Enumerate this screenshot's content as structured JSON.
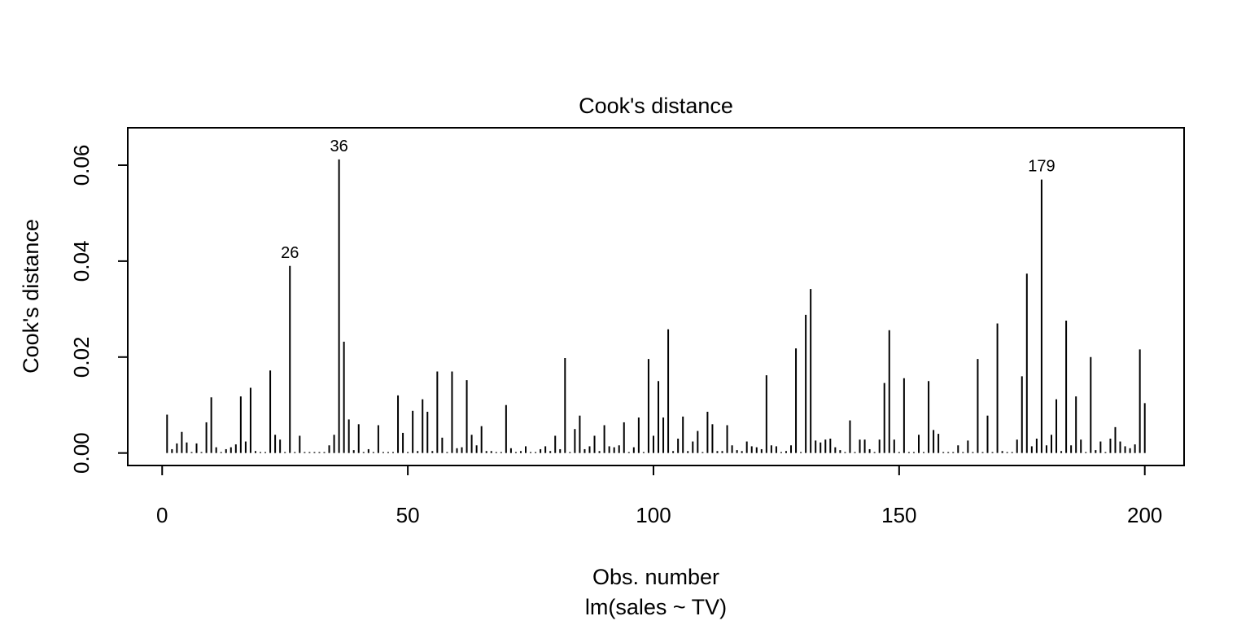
{
  "chart_data": {
    "type": "bar",
    "title": "Cook's distance",
    "xlabel": "Obs. number",
    "sublabel": "lm(sales ~ TV)",
    "ylabel": "Cook's distance",
    "xlim": [
      -7,
      208
    ],
    "ylim": [
      -0.0026,
      0.0678
    ],
    "x_ticks": [
      0,
      50,
      100,
      150,
      200
    ],
    "y_ticks": [
      0.0,
      0.02,
      0.04,
      0.06
    ],
    "y_tick_labels": [
      "0.00",
      "0.02",
      "0.04",
      "0.06"
    ],
    "grid": false,
    "values": [
      0.008,
      0.0008,
      0.002,
      0.0044,
      0.0022,
      0.0002,
      0.002,
      0.0002,
      0.0064,
      0.0116,
      0.0012,
      0.0002,
      0.0008,
      0.0012,
      0.0018,
      0.0118,
      0.0024,
      0.0136,
      0.0004,
      0.0002,
      0.0002,
      0.0172,
      0.0038,
      0.0028,
      0.0002,
      0.039,
      0.0002,
      0.0036,
      0.0002,
      0.0002,
      0.0002,
      0.0002,
      0.0002,
      0.0016,
      0.0038,
      0.0612,
      0.0232,
      0.007,
      0.0006,
      0.006,
      0.0002,
      0.0008,
      0.0002,
      0.0058,
      0.0002,
      0.0002,
      0.0002,
      0.012,
      0.0042,
      0.0002,
      0.0088,
      0.0004,
      0.0112,
      0.0086,
      0.0004,
      0.017,
      0.0032,
      0.0002,
      0.017,
      0.001,
      0.0012,
      0.0152,
      0.0038,
      0.0016,
      0.0056,
      0.0004,
      0.0004,
      0.0002,
      0.0002,
      0.01,
      0.001,
      0.0002,
      0.0004,
      0.0014,
      0.0002,
      0.0002,
      0.0008,
      0.0014,
      0.0004,
      0.0036,
      0.0008,
      0.0198,
      0.0002,
      0.005,
      0.0078,
      0.0008,
      0.0014,
      0.0036,
      0.0004,
      0.0058,
      0.0014,
      0.0012,
      0.0016,
      0.0064,
      0.0002,
      0.0012,
      0.0074,
      0.0002,
      0.0196,
      0.0036,
      0.015,
      0.0074,
      0.0258,
      0.0004,
      0.003,
      0.0076,
      0.0004,
      0.0024,
      0.0046,
      0.0002,
      0.0086,
      0.006,
      0.0004,
      0.0004,
      0.0058,
      0.0016,
      0.0006,
      0.0004,
      0.0024,
      0.0014,
      0.0012,
      0.0008,
      0.0162,
      0.0016,
      0.0014,
      0.0002,
      0.0004,
      0.0016,
      0.0218,
      0.0002,
      0.0288,
      0.0342,
      0.0026,
      0.0022,
      0.0028,
      0.003,
      0.0012,
      0.0006,
      0.0002,
      0.0068,
      0.0002,
      0.0028,
      0.0028,
      0.0008,
      0.0002,
      0.0028,
      0.0146,
      0.0256,
      0.0028,
      0.0002,
      0.0156,
      0.0002,
      0.0002,
      0.0038,
      0.0002,
      0.015,
      0.0048,
      0.004,
      0.0002,
      0.0002,
      0.0002,
      0.0016,
      0.0002,
      0.0026,
      0.0002,
      0.0196,
      0.0002,
      0.0078,
      0.0002,
      0.027,
      0.0004,
      0.0002,
      0.0002,
      0.0028,
      0.016,
      0.0374,
      0.0014,
      0.003,
      0.057,
      0.0016,
      0.0038,
      0.0112,
      0.0004,
      0.0276,
      0.0016,
      0.0118,
      0.0028,
      0.0002,
      0.02,
      0.0006,
      0.0024,
      0.0002,
      0.003,
      0.0054,
      0.0024,
      0.0014,
      0.001,
      0.0018,
      0.0216,
      0.0104
    ],
    "annotations": [
      {
        "label": "26",
        "obs": 26
      },
      {
        "label": "36",
        "obs": 36
      },
      {
        "label": "179",
        "obs": 179
      }
    ]
  }
}
